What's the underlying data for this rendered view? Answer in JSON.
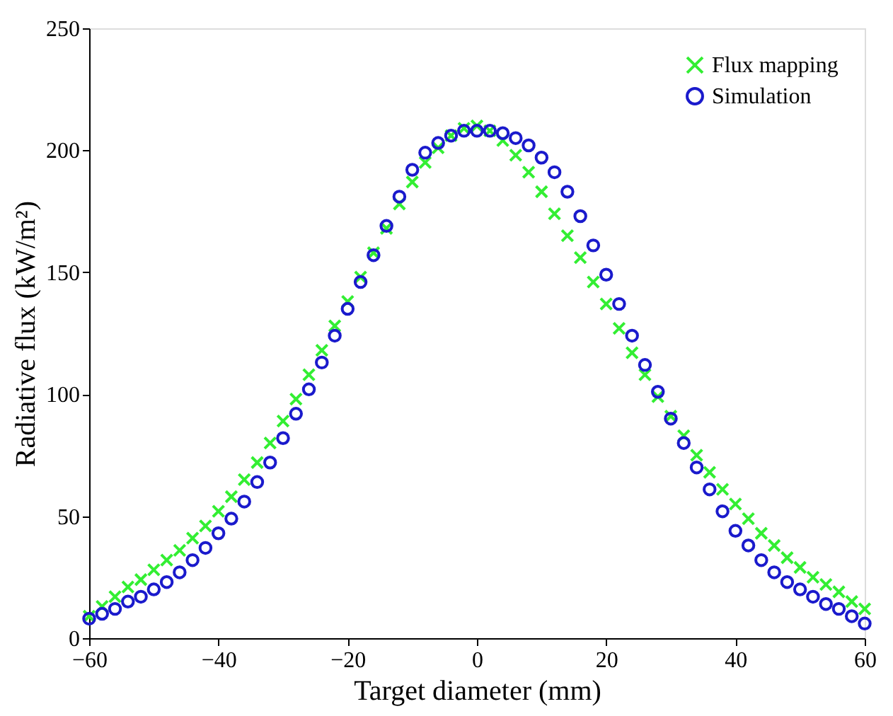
{
  "chart_data": {
    "type": "scatter",
    "xlabel": "Target diameter (mm)",
    "ylabel": "Radiative flux (kW/m²)",
    "x": [
      -60,
      -58,
      -56,
      -54,
      -52,
      -50,
      -48,
      -46,
      -44,
      -42,
      -40,
      -38,
      -36,
      -34,
      -32,
      -30,
      -28,
      -26,
      -24,
      -22,
      -20,
      -18,
      -16,
      -14,
      -12,
      -10,
      -8,
      -6,
      -4,
      -2,
      0,
      2,
      4,
      6,
      8,
      10,
      12,
      14,
      16,
      18,
      20,
      22,
      24,
      26,
      28,
      30,
      32,
      34,
      36,
      38,
      40,
      42,
      44,
      46,
      48,
      50,
      52,
      54,
      56,
      58,
      60
    ],
    "series": [
      {
        "name": "Flux mapping",
        "color": "#33ee33",
        "marker": "cross",
        "values": [
          9,
          13,
          17,
          21,
          24,
          28,
          32,
          36,
          41,
          46,
          52,
          58,
          65,
          72,
          80,
          89,
          98,
          108,
          118,
          128,
          138,
          148,
          158,
          168,
          178,
          187,
          195,
          201,
          206,
          209,
          210,
          208,
          204,
          198,
          191,
          183,
          174,
          165,
          156,
          146,
          137,
          127,
          117,
          108,
          99,
          91,
          83,
          75,
          68,
          61,
          55,
          49,
          43,
          38,
          33,
          29,
          25,
          22,
          19,
          15,
          12
        ]
      },
      {
        "name": "Simulation",
        "color": "#1a1acc",
        "marker": "circle",
        "values": [
          8,
          10,
          12,
          15,
          17,
          20,
          23,
          27,
          32,
          37,
          43,
          49,
          56,
          64,
          72,
          82,
          92,
          102,
          113,
          124,
          135,
          146,
          157,
          169,
          181,
          192,
          199,
          203,
          206,
          208,
          208,
          208,
          207,
          205,
          202,
          197,
          191,
          183,
          173,
          161,
          149,
          137,
          124,
          112,
          101,
          90,
          80,
          70,
          61,
          52,
          44,
          38,
          32,
          27,
          23,
          20,
          17,
          14,
          12,
          9,
          6
        ]
      }
    ],
    "xlim": [
      -60,
      60
    ],
    "xticks": [
      -60,
      -40,
      -20,
      0,
      20,
      40,
      60
    ],
    "ylim": [
      0,
      250
    ],
    "yticks": [
      0,
      50,
      100,
      150,
      200,
      250
    ],
    "grid": false,
    "legend": "top right"
  }
}
